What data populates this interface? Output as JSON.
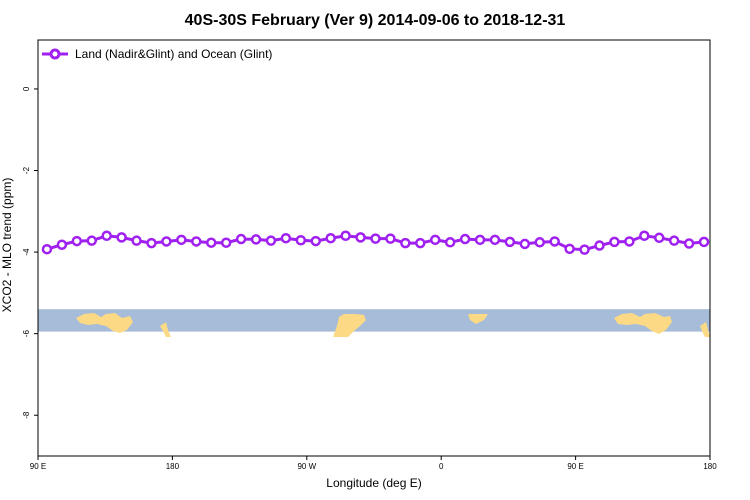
{
  "chart_data": {
    "type": "line",
    "title": "40S-30S February (Ver 9)   2014-09-06 to 2018-12-31",
    "xlabel": "Longitude (deg E)",
    "ylabel": "XCO2 - MLO trend (ppm)",
    "x_ticks": [
      {
        "value": 90,
        "label": "90 E"
      },
      {
        "value": 180,
        "label": "180"
      },
      {
        "value": 270,
        "label": "90 W"
      },
      {
        "value": 360,
        "label": "0"
      },
      {
        "value": 450,
        "label": "90 E"
      },
      {
        "value": 540,
        "label": "180"
      }
    ],
    "y_ticks": [
      {
        "value": 0,
        "label": "0"
      },
      {
        "value": -2,
        "label": "-2"
      },
      {
        "value": -4,
        "label": "-4"
      },
      {
        "value": -6,
        "label": "-6"
      },
      {
        "value": -8,
        "label": "-8"
      }
    ],
    "xlim": [
      90,
      540
    ],
    "ylim": [
      -9,
      1.2
    ],
    "grid": false,
    "legend_position": "top-left",
    "map_strip": {
      "ymin": -5.95,
      "ymax": -5.4,
      "ocean_color": "#a7bcd9",
      "land_color": "#fbd985"
    },
    "series": [
      {
        "name": "Land (Nadir&Glint) and Ocean (Glint)",
        "color": "#a020f0",
        "x": [
          96,
          106,
          116,
          126,
          136,
          146,
          156,
          166,
          176,
          186,
          196,
          206,
          216,
          226,
          236,
          246,
          256,
          266,
          276,
          286,
          296,
          306,
          316,
          326,
          336,
          346,
          356,
          366,
          376,
          386,
          396,
          406,
          416,
          426,
          436,
          446,
          456,
          466,
          476,
          486,
          496,
          506,
          516,
          526,
          536
        ],
        "y": [
          -3.93,
          -3.82,
          -3.73,
          -3.72,
          -3.6,
          -3.64,
          -3.72,
          -3.78,
          -3.74,
          -3.7,
          -3.74,
          -3.77,
          -3.77,
          -3.68,
          -3.69,
          -3.72,
          -3.66,
          -3.71,
          -3.73,
          -3.66,
          -3.6,
          -3.64,
          -3.67,
          -3.67,
          -3.78,
          -3.78,
          -3.7,
          -3.76,
          -3.68,
          -3.7,
          -3.7,
          -3.75,
          -3.8,
          -3.76,
          -3.74,
          -3.92,
          -3.94,
          -3.84,
          -3.75,
          -3.74,
          -3.6,
          -3.65,
          -3.72,
          -3.79,
          -3.75
        ]
      }
    ]
  }
}
